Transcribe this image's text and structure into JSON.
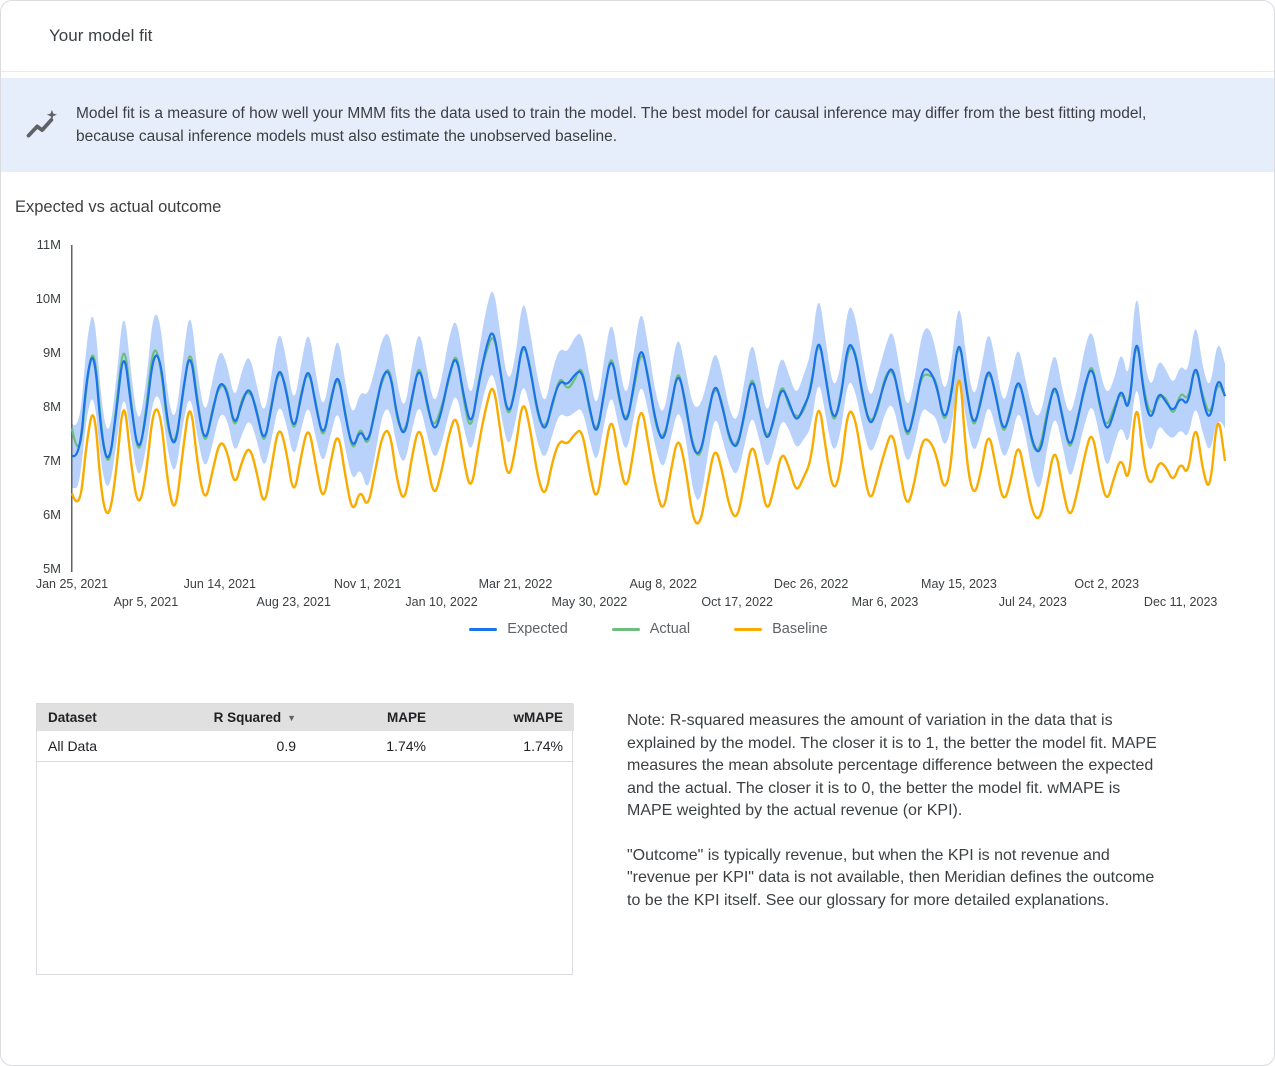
{
  "page": {
    "title": "Your model fit"
  },
  "banner": {
    "icon": "insights-icon",
    "text": "Model fit is a measure of how well your MMM fits the data used to train the model. The best model for causal inference may differ from the best fitting model, because causal inference models must also estimate the unobserved baseline."
  },
  "section": {
    "title": "Expected vs actual outcome"
  },
  "chart_data": {
    "type": "line",
    "title": "Expected vs actual outcome",
    "x_unit": "week",
    "ylim": [
      5,
      11
    ],
    "y_unit": "M",
    "grid": false,
    "legend_position": "bottom-center",
    "band_color": "#A8C7FA",
    "y_ticks": [
      5,
      6,
      7,
      8,
      9,
      10,
      11
    ],
    "x_ticks": [
      {
        "label": "Jan 25, 2021",
        "week": 0,
        "row": 1
      },
      {
        "label": "Apr 5, 2021",
        "week": 10,
        "row": 2
      },
      {
        "label": "Jun 14, 2021",
        "week": 20,
        "row": 1
      },
      {
        "label": "Aug 23, 2021",
        "week": 30,
        "row": 2
      },
      {
        "label": "Nov 1, 2021",
        "week": 40,
        "row": 1
      },
      {
        "label": "Jan 10, 2022",
        "week": 50,
        "row": 2
      },
      {
        "label": "Mar 21, 2022",
        "week": 60,
        "row": 1
      },
      {
        "label": "May 30, 2022",
        "week": 70,
        "row": 2
      },
      {
        "label": "Aug 8, 2022",
        "week": 80,
        "row": 1
      },
      {
        "label": "Oct 17, 2022",
        "week": 90,
        "row": 2
      },
      {
        "label": "Dec 26, 2022",
        "week": 100,
        "row": 1
      },
      {
        "label": "Mar 6, 2023",
        "week": 110,
        "row": 2
      },
      {
        "label": "May 15, 2023",
        "week": 120,
        "row": 1
      },
      {
        "label": "Jul 24, 2023",
        "week": 130,
        "row": 2
      },
      {
        "label": "Oct 2, 2023",
        "week": 140,
        "row": 1
      },
      {
        "label": "Dec 11, 2023",
        "week": 150,
        "row": 2
      }
    ],
    "series": [
      {
        "name": "Expected",
        "color": "#1A73E8",
        "values": [
          7.1,
          7.0,
          8.6,
          9.1,
          7.4,
          6.9,
          7.9,
          9.15,
          8.0,
          7.1,
          7.8,
          9.0,
          8.9,
          7.6,
          7.2,
          8.3,
          9.1,
          8.0,
          7.3,
          7.9,
          8.5,
          8.3,
          7.6,
          8.1,
          8.4,
          7.9,
          7.3,
          8.0,
          8.8,
          8.3,
          7.5,
          8.2,
          8.8,
          8.0,
          7.4,
          8.1,
          8.7,
          7.8,
          7.2,
          7.6,
          7.3,
          7.9,
          8.6,
          8.7,
          7.8,
          7.4,
          8.2,
          8.8,
          8.1,
          7.5,
          7.9,
          8.6,
          9.0,
          8.2,
          7.6,
          8.4,
          9.1,
          9.5,
          8.6,
          7.8,
          8.3,
          9.3,
          8.7,
          7.9,
          7.5,
          8.1,
          8.5,
          8.4,
          8.6,
          8.7,
          8.0,
          7.4,
          8.3,
          9.0,
          8.2,
          7.6,
          8.4,
          9.2,
          8.5,
          7.7,
          7.3,
          8.0,
          8.7,
          8.1,
          7.2,
          7.1,
          7.8,
          8.5,
          8.0,
          7.4,
          7.2,
          7.9,
          8.6,
          8.0,
          7.3,
          7.8,
          8.4,
          8.1,
          7.7,
          8.0,
          8.3,
          9.4,
          8.5,
          7.7,
          8.1,
          9.25,
          9.0,
          8.2,
          7.6,
          8.0,
          8.5,
          8.8,
          8.1,
          7.4,
          7.9,
          8.7,
          8.7,
          8.4,
          7.7,
          8.2,
          9.4,
          8.3,
          7.6,
          8.1,
          8.8,
          8.2,
          7.5,
          7.9,
          8.6,
          8.0,
          7.3,
          7.1,
          7.9,
          8.5,
          7.8,
          7.2,
          7.7,
          8.4,
          8.8,
          8.1,
          7.5,
          7.9,
          8.4,
          7.8,
          9.5,
          8.2,
          7.7,
          8.3,
          8.1,
          7.9,
          8.2,
          8.0,
          8.9,
          8.1,
          7.7,
          8.6,
          8.2
        ]
      },
      {
        "name": "Actual",
        "color": "#6DBD7F",
        "values": [
          7.6,
          6.9,
          8.5,
          9.2,
          7.5,
          6.8,
          8.0,
          9.3,
          8.1,
          7.0,
          7.9,
          9.2,
          8.8,
          7.5,
          7.3,
          8.2,
          9.2,
          8.1,
          7.2,
          8.0,
          8.4,
          8.4,
          7.5,
          8.2,
          8.3,
          8.0,
          7.2,
          8.1,
          8.7,
          8.4,
          7.4,
          8.3,
          8.7,
          8.1,
          7.3,
          8.2,
          8.6,
          7.9,
          7.1,
          7.7,
          7.2,
          8.0,
          8.5,
          8.8,
          7.7,
          7.5,
          8.1,
          8.9,
          8.0,
          7.6,
          8.0,
          8.5,
          9.1,
          8.1,
          7.5,
          8.5,
          9.0,
          9.4,
          8.7,
          7.7,
          8.4,
          9.2,
          8.8,
          7.8,
          7.6,
          8.0,
          8.6,
          8.3,
          8.5,
          8.8,
          7.9,
          7.5,
          8.2,
          9.1,
          8.1,
          7.7,
          8.3,
          9.1,
          8.6,
          7.6,
          7.4,
          7.9,
          8.8,
          8.0,
          7.3,
          7.0,
          7.9,
          8.4,
          8.1,
          7.3,
          7.3,
          7.8,
          8.7,
          7.9,
          7.4,
          7.7,
          8.5,
          8.0,
          7.8,
          7.9,
          8.4,
          9.3,
          8.6,
          7.6,
          8.2,
          9.1,
          9.1,
          8.1,
          7.7,
          7.9,
          8.6,
          8.7,
          8.2,
          7.3,
          8.0,
          8.6,
          8.6,
          8.5,
          7.6,
          8.3,
          9.3,
          8.4,
          7.5,
          8.2,
          8.7,
          8.3,
          7.4,
          8.0,
          8.5,
          8.1,
          7.2,
          7.2,
          8.0,
          8.4,
          7.9,
          7.1,
          7.8,
          8.3,
          8.9,
          8.0,
          7.6,
          8.0,
          8.3,
          7.9,
          9.4,
          8.3,
          7.8,
          8.2,
          8.2,
          7.8,
          8.3,
          8.1,
          8.8,
          8.2,
          7.8,
          8.5,
          8.2
        ]
      },
      {
        "name": "Baseline",
        "color": "#F9AB00",
        "values": [
          6.4,
          6.0,
          7.4,
          8.1,
          6.3,
          5.9,
          6.8,
          8.3,
          6.9,
          6.1,
          6.7,
          8.0,
          7.9,
          6.5,
          6.0,
          7.2,
          8.2,
          6.9,
          6.2,
          6.8,
          7.4,
          7.2,
          6.5,
          7.0,
          7.3,
          6.8,
          6.1,
          6.9,
          7.7,
          7.2,
          6.3,
          7.1,
          7.7,
          6.9,
          6.2,
          7.0,
          7.6,
          6.7,
          6.0,
          6.5,
          6.1,
          6.8,
          7.5,
          7.6,
          6.6,
          6.2,
          7.1,
          7.7,
          7.0,
          6.3,
          6.8,
          7.5,
          7.9,
          7.0,
          6.4,
          7.3,
          8.0,
          8.5,
          7.5,
          6.6,
          7.2,
          8.2,
          7.6,
          6.7,
          6.3,
          7.0,
          7.4,
          7.3,
          7.5,
          7.6,
          6.8,
          6.2,
          7.1,
          7.9,
          7.0,
          6.4,
          7.2,
          8.1,
          7.3,
          6.5,
          6.0,
          6.8,
          7.5,
          6.9,
          5.9,
          5.8,
          6.6,
          7.3,
          6.8,
          6.1,
          5.9,
          6.6,
          7.4,
          6.8,
          6.0,
          6.5,
          7.2,
          6.9,
          6.4,
          6.7,
          7.0,
          8.2,
          7.2,
          6.4,
          6.8,
          8.0,
          7.8,
          6.9,
          6.2,
          6.7,
          7.2,
          7.6,
          6.8,
          6.1,
          6.6,
          7.4,
          7.4,
          7.1,
          6.4,
          6.9,
          9.0,
          7.0,
          6.3,
          6.8,
          7.6,
          6.9,
          6.2,
          6.6,
          7.4,
          6.7,
          6.0,
          5.9,
          6.6,
          7.3,
          6.5,
          5.9,
          6.4,
          7.1,
          7.6,
          6.8,
          6.2,
          6.7,
          7.1,
          6.5,
          8.3,
          6.9,
          6.5,
          7.0,
          6.9,
          6.6,
          7.0,
          6.7,
          7.8,
          6.8,
          6.4,
          8.0,
          7.0
        ]
      }
    ],
    "ci_halfwidth": [
      0.6,
      0.5,
      0.7,
      0.8,
      0.6,
      0.5,
      0.6,
      0.8,
      0.6,
      0.5,
      0.6,
      0.8,
      0.7,
      0.5,
      0.5,
      0.6,
      0.8,
      0.6,
      0.5,
      0.6,
      0.6,
      0.5,
      0.5,
      0.6,
      0.6,
      0.5,
      0.5,
      0.6,
      0.7,
      0.6,
      0.5,
      0.6,
      0.7,
      0.6,
      0.5,
      0.6,
      0.7,
      0.6,
      0.6,
      0.7,
      0.9,
      0.8,
      0.7,
      0.7,
      0.6,
      0.5,
      0.6,
      0.7,
      0.6,
      0.5,
      0.6,
      0.7,
      0.7,
      0.6,
      0.5,
      0.6,
      0.7,
      0.8,
      0.7,
      0.6,
      0.6,
      0.8,
      0.7,
      0.6,
      0.5,
      0.6,
      0.6,
      0.6,
      0.7,
      0.7,
      0.6,
      0.5,
      0.6,
      0.7,
      0.6,
      0.5,
      0.6,
      0.7,
      0.6,
      0.5,
      0.5,
      0.6,
      0.7,
      0.6,
      0.8,
      0.9,
      0.7,
      0.6,
      0.6,
      0.5,
      0.5,
      0.6,
      0.7,
      0.6,
      0.5,
      0.6,
      0.6,
      0.5,
      0.5,
      0.6,
      0.7,
      0.8,
      0.7,
      0.6,
      0.6,
      0.7,
      0.7,
      0.6,
      0.5,
      0.6,
      0.6,
      0.7,
      0.6,
      0.5,
      0.6,
      0.7,
      0.8,
      0.6,
      0.5,
      0.6,
      0.7,
      0.6,
      0.5,
      0.6,
      0.7,
      0.6,
      0.5,
      0.6,
      0.6,
      0.5,
      0.6,
      0.7,
      0.6,
      0.6,
      0.5,
      0.6,
      0.6,
      0.7,
      0.7,
      0.6,
      0.7,
      0.6,
      0.7,
      0.6,
      0.9,
      0.7,
      0.6,
      0.6,
      0.6,
      0.5,
      0.6,
      0.6,
      0.8,
      0.6,
      0.6,
      0.7,
      0.6
    ]
  },
  "table": {
    "headers": [
      "Dataset",
      "R Squared",
      "MAPE",
      "wMAPE"
    ],
    "sort_header": "R Squared",
    "sort_icon": "▼",
    "rows": [
      [
        "All Data",
        "0.9",
        "1.74%",
        "1.74%"
      ]
    ]
  },
  "note": {
    "p1": "Note: R-squared measures the amount of variation in the data that is explained by the model. The closer it is to 1, the better the model fit. MAPE measures the mean absolute percentage difference between the expected and the actual. The closer it is to 0, the better the model fit. wMAPE is MAPE weighted by the actual revenue (or KPI).",
    "p2": "\"Outcome\" is typically revenue, but when the KPI is not revenue and \"revenue per KPI\" data is not available, then Meridian defines the outcome to be the KPI itself. See our glossary for more detailed explanations."
  }
}
